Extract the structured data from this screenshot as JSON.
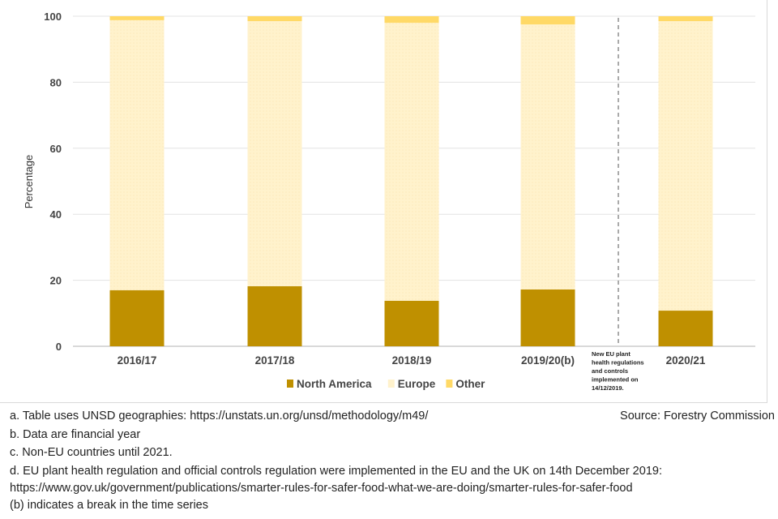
{
  "chart_data": {
    "type": "bar",
    "stacked": true,
    "title": "",
    "xlabel": "",
    "ylabel": "Percentage",
    "ylim": [
      0,
      100
    ],
    "yticks": [
      0,
      20,
      40,
      60,
      80,
      100
    ],
    "grid": true,
    "legend_position": "bottom",
    "categories": [
      "2016/17",
      "2017/18",
      "2018/19",
      "2019/20(b)",
      "2020/21"
    ],
    "series": [
      {
        "name": "North America",
        "color": "#bf9000",
        "values": [
          17.0,
          18.2,
          13.8,
          17.2,
          10.8
        ]
      },
      {
        "name": "Europe",
        "color": "#fff2cc",
        "values": [
          81.8,
          80.3,
          84.2,
          80.3,
          87.7
        ]
      },
      {
        "name": "Other",
        "color": "#ffd966",
        "values": [
          1.2,
          1.5,
          2.0,
          2.5,
          1.5
        ]
      }
    ],
    "annotation": {
      "text": [
        "New EU plant",
        "health regulations",
        "and controls",
        "implemented on",
        "14/12/2019."
      ],
      "after_category": "2019/20(b)"
    }
  },
  "notes": [
    "a. Table uses UNSD geographies: https://unstats.un.org/unsd/methodology/m49/",
    "b. Data are financial year",
    "c. Non-EU countries until 2021.",
    "d. EU plant health regulation and official controls regulation were implemented in the EU and the UK on 14th December 2019:",
    "https://www.gov.uk/government/publications/smarter-rules-for-safer-food-what-we-are-doing/smarter-rules-for-safer-food",
    "(b) indicates a break in the time series"
  ],
  "source": "Source: Forestry Commission"
}
